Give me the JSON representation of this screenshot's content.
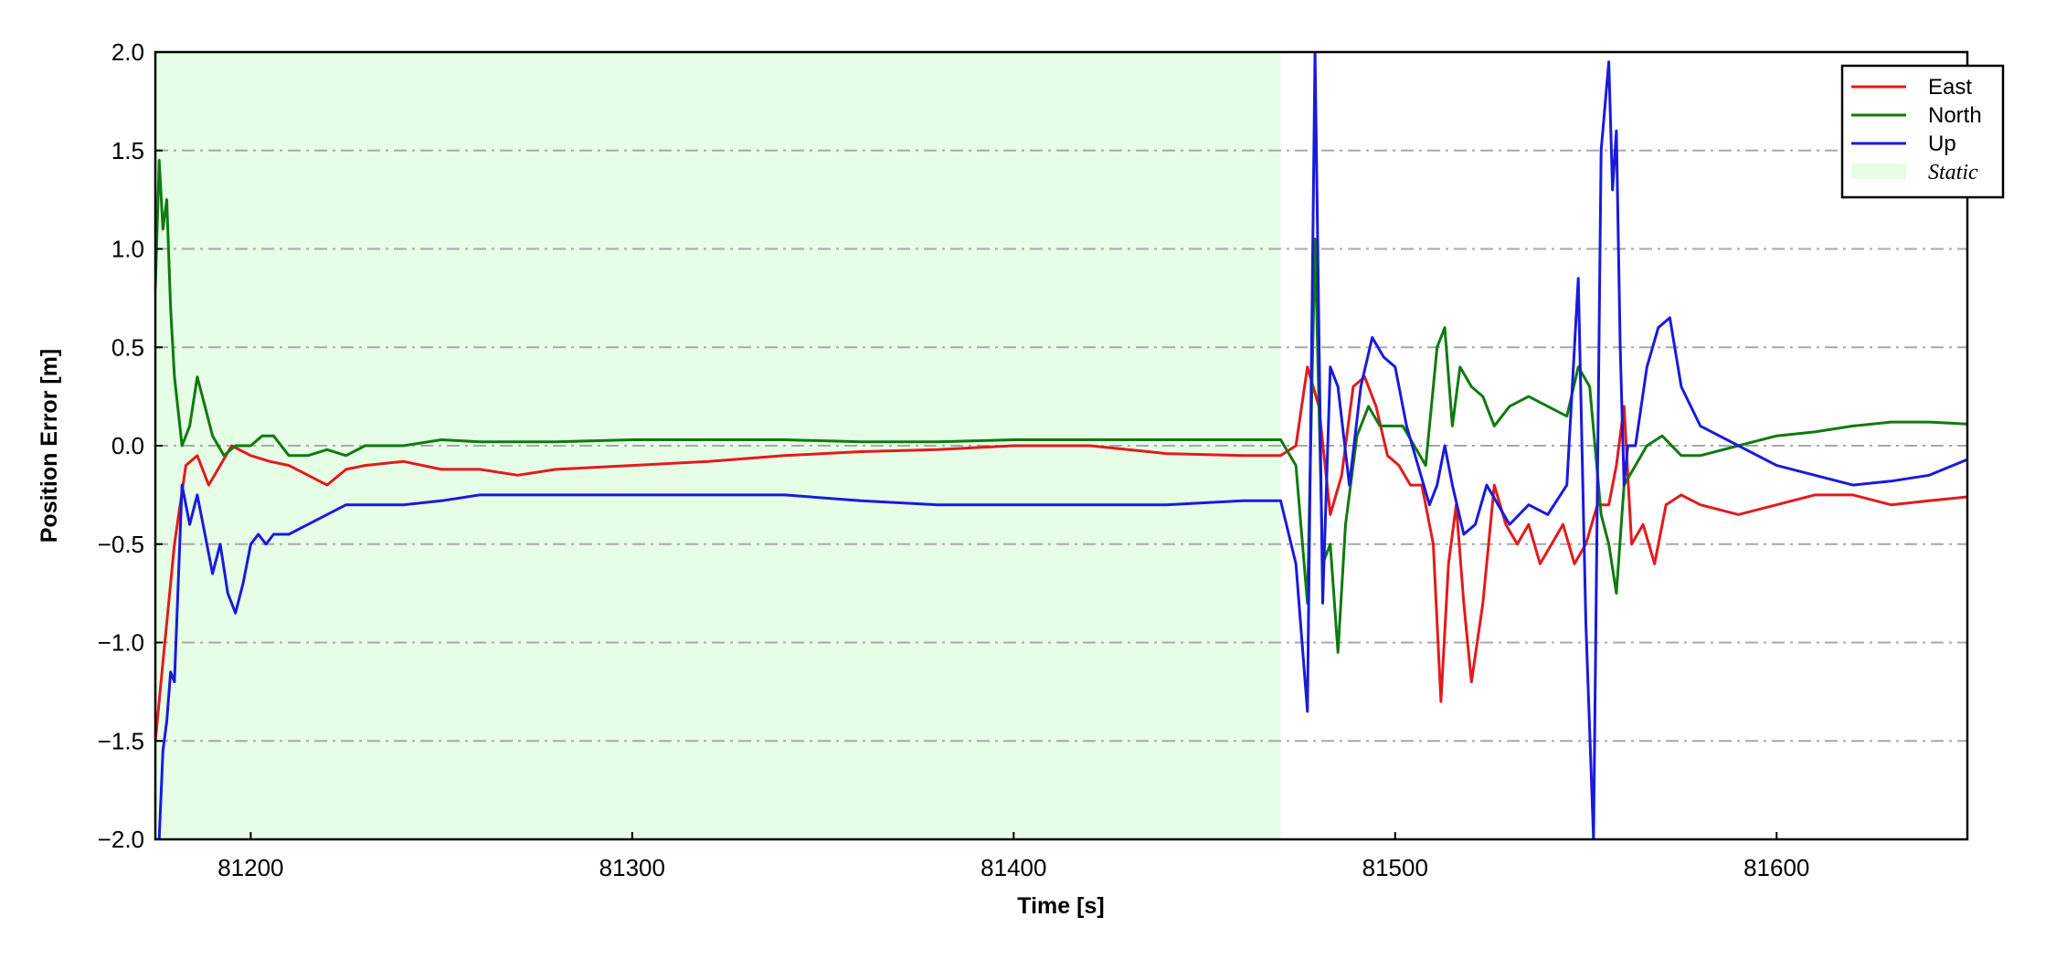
{
  "chart_data": {
    "type": "line",
    "xlabel": "Time [s]",
    "ylabel": "Position Error [m]",
    "xlim": [
      81175,
      81650
    ],
    "ylim": [
      -2.0,
      2.0
    ],
    "xticks": [
      81200,
      81300,
      81400,
      81500,
      81600
    ],
    "xtick_labels": [
      "81200",
      "81300",
      "81400",
      "81500",
      "81600"
    ],
    "yticks": [
      -2.0,
      -1.5,
      -1.0,
      -0.5,
      0.0,
      0.5,
      1.0,
      1.5,
      2.0
    ],
    "ytick_labels": [
      "−2.0",
      "−1.5",
      "−1.0",
      "−0.5",
      "0.0",
      "0.5",
      "1.0",
      "1.5",
      "2.0"
    ],
    "grid": "horizontal dash-dot",
    "legend_position": "top-right",
    "static_region": {
      "label": "Static",
      "x_start": 81175,
      "x_end": 81470,
      "color": "#e6fde6"
    },
    "series": [
      {
        "name": "East",
        "color": "#e31a1c",
        "x": [
          81175,
          81177,
          81180,
          81183,
          81186,
          81189,
          81192,
          81195,
          81200,
          81205,
          81210,
          81215,
          81220,
          81225,
          81230,
          81240,
          81250,
          81260,
          81270,
          81280,
          81300,
          81320,
          81340,
          81360,
          81380,
          81400,
          81420,
          81440,
          81460,
          81470,
          81474,
          81477,
          81480,
          81483,
          81486,
          81489,
          81492,
          81495,
          81498,
          81501,
          81504,
          81507,
          81510,
          81512,
          81514,
          81516,
          81518,
          81520,
          81523,
          81526,
          81529,
          81532,
          81535,
          81538,
          81541,
          81544,
          81547,
          81550,
          81553,
          81556,
          81558,
          81560,
          81562,
          81565,
          81568,
          81571,
          81575,
          81580,
          81590,
          81600,
          81610,
          81620,
          81630,
          81640,
          81650
        ],
        "y": [
          -1.5,
          -1.1,
          -0.5,
          -0.1,
          -0.05,
          -0.2,
          -0.1,
          0.0,
          -0.05,
          -0.08,
          -0.1,
          -0.15,
          -0.2,
          -0.12,
          -0.1,
          -0.08,
          -0.12,
          -0.12,
          -0.15,
          -0.12,
          -0.1,
          -0.08,
          -0.05,
          -0.03,
          -0.02,
          0.0,
          0.0,
          -0.04,
          -0.05,
          -0.05,
          0.0,
          0.4,
          0.2,
          -0.35,
          -0.15,
          0.3,
          0.35,
          0.2,
          -0.05,
          -0.1,
          -0.2,
          -0.2,
          -0.5,
          -1.3,
          -0.6,
          -0.3,
          -0.8,
          -1.2,
          -0.8,
          -0.2,
          -0.4,
          -0.5,
          -0.4,
          -0.6,
          -0.5,
          -0.4,
          -0.6,
          -0.5,
          -0.3,
          -0.3,
          -0.1,
          0.2,
          -0.5,
          -0.4,
          -0.6,
          -0.3,
          -0.25,
          -0.3,
          -0.35,
          -0.3,
          -0.25,
          -0.25,
          -0.3,
          -0.28,
          -0.26
        ]
      },
      {
        "name": "North",
        "color": "#0f7a0f",
        "x": [
          81175,
          81176,
          81177,
          81178,
          81179,
          81180,
          81182,
          81184,
          81186,
          81188,
          81190,
          81193,
          81196,
          81200,
          81203,
          81206,
          81210,
          81215,
          81220,
          81225,
          81230,
          81240,
          81250,
          81260,
          81280,
          81300,
          81320,
          81340,
          81360,
          81380,
          81400,
          81420,
          81440,
          81460,
          81470,
          81474,
          81477,
          81479,
          81481,
          81483,
          81485,
          81487,
          81490,
          81493,
          81496,
          81499,
          81502,
          81505,
          81508,
          81511,
          81513,
          81515,
          81517,
          81520,
          81523,
          81526,
          81530,
          81535,
          81540,
          81545,
          81548,
          81551,
          81554,
          81556,
          81558,
          81560,
          81563,
          81566,
          81570,
          81575,
          81580,
          81590,
          81600,
          81610,
          81620,
          81630,
          81640,
          81650
        ],
        "y": [
          0.8,
          1.45,
          1.1,
          1.25,
          0.7,
          0.35,
          0.0,
          0.1,
          0.35,
          0.2,
          0.05,
          -0.05,
          0.0,
          0.0,
          0.05,
          0.05,
          -0.05,
          -0.05,
          -0.02,
          -0.05,
          0.0,
          0.0,
          0.03,
          0.02,
          0.02,
          0.03,
          0.03,
          0.03,
          0.02,
          0.02,
          0.03,
          0.03,
          0.03,
          0.03,
          0.03,
          -0.1,
          -0.8,
          1.05,
          -0.6,
          -0.5,
          -1.05,
          -0.4,
          0.05,
          0.2,
          0.1,
          0.1,
          0.1,
          0.0,
          -0.1,
          0.5,
          0.6,
          0.1,
          0.4,
          0.3,
          0.25,
          0.1,
          0.2,
          0.25,
          0.2,
          0.15,
          0.4,
          0.3,
          -0.35,
          -0.5,
          -0.75,
          -0.2,
          -0.1,
          0.0,
          0.05,
          -0.05,
          -0.05,
          0.0,
          0.05,
          0.07,
          0.1,
          0.12,
          0.12,
          0.11
        ]
      },
      {
        "name": "Up",
        "color": "#1a1adb",
        "x": [
          81175,
          81176,
          81177,
          81178,
          81179,
          81180,
          81182,
          81184,
          81186,
          81188,
          81190,
          81192,
          81194,
          81196,
          81198,
          81200,
          81202,
          81204,
          81206,
          81208,
          81210,
          81215,
          81220,
          81225,
          81230,
          81240,
          81250,
          81260,
          81280,
          81300,
          81320,
          81340,
          81360,
          81380,
          81400,
          81420,
          81440,
          81460,
          81470,
          81474,
          81477,
          81479,
          81481,
          81483,
          81485,
          81488,
          81491,
          81494,
          81497,
          81500,
          81503,
          81506,
          81509,
          81511,
          81513,
          81515,
          81518,
          81521,
          81524,
          81527,
          81530,
          81535,
          81540,
          81545,
          81548,
          81550,
          81552,
          81554,
          81556,
          81557,
          81558,
          81559,
          81560,
          81561,
          81563,
          81566,
          81569,
          81572,
          81575,
          81580,
          81590,
          81600,
          81610,
          81620,
          81630,
          81640,
          81650
        ],
        "y": [
          -2.0,
          -2.0,
          -1.55,
          -1.4,
          -1.15,
          -1.2,
          -0.2,
          -0.4,
          -0.25,
          -0.45,
          -0.65,
          -0.5,
          -0.75,
          -0.85,
          -0.7,
          -0.5,
          -0.45,
          -0.5,
          -0.45,
          -0.45,
          -0.45,
          -0.4,
          -0.35,
          -0.3,
          -0.3,
          -0.3,
          -0.28,
          -0.25,
          -0.25,
          -0.25,
          -0.25,
          -0.25,
          -0.28,
          -0.3,
          -0.3,
          -0.3,
          -0.3,
          -0.28,
          -0.28,
          -0.6,
          -1.35,
          2.0,
          -0.8,
          0.4,
          0.3,
          -0.2,
          0.3,
          0.55,
          0.45,
          0.4,
          0.1,
          -0.1,
          -0.3,
          -0.2,
          0.0,
          -0.2,
          -0.45,
          -0.4,
          -0.2,
          -0.3,
          -0.4,
          -0.3,
          -0.35,
          -0.2,
          0.85,
          -0.9,
          -2.0,
          1.5,
          1.95,
          1.3,
          1.6,
          0.5,
          -0.2,
          0.0,
          0.0,
          0.4,
          0.6,
          0.65,
          0.3,
          0.1,
          0.0,
          -0.1,
          -0.15,
          -0.2,
          -0.18,
          -0.15,
          -0.07
        ]
      }
    ]
  }
}
